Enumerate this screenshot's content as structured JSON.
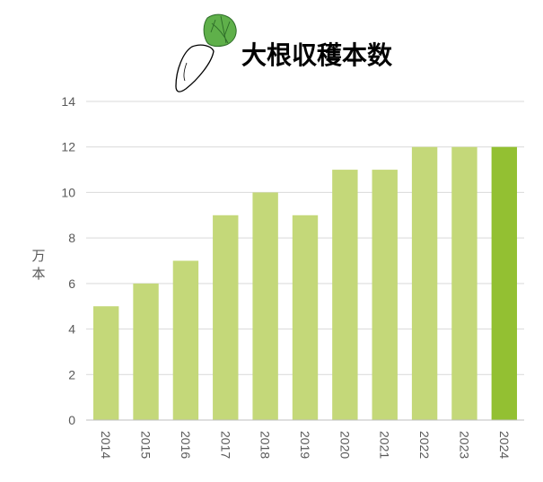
{
  "chart_data": {
    "type": "bar",
    "title": "大根収穫本数",
    "ylabel": "万本",
    "xlabel": "",
    "categories": [
      "2014",
      "2015",
      "2016",
      "2017",
      "2018",
      "2019",
      "2020",
      "2021",
      "2022",
      "2023",
      "2024"
    ],
    "values": [
      5,
      6,
      7,
      9,
      10,
      9,
      11,
      11,
      12,
      12,
      12
    ],
    "ylim": [
      0,
      14
    ],
    "yticks": [
      0,
      2,
      4,
      6,
      8,
      10,
      12,
      14
    ],
    "grid": true,
    "legend": "none",
    "colors": {
      "bar": "#c4d879",
      "highlight": "#93c032",
      "grid": "#d9d9d9",
      "axis": "#bfbfbf",
      "text": "#595959"
    },
    "highlight_index": 10
  },
  "decoration": {
    "icon": "daikon-radish-icon"
  }
}
